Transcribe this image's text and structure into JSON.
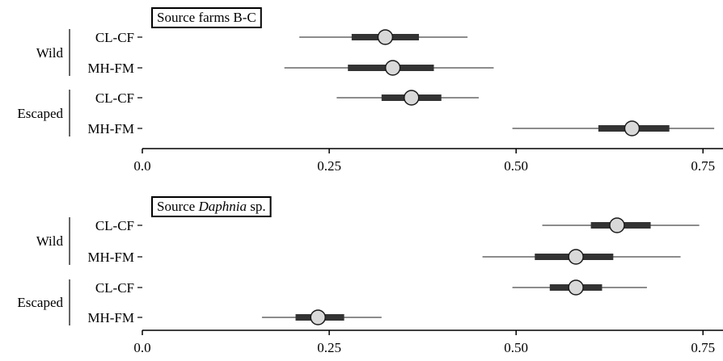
{
  "chart_data": [
    {
      "type": "scatter",
      "panel_title": {
        "prefix": "Source ",
        "italic": "",
        "suffix": "farms B-C"
      },
      "xlim": [
        0.0,
        0.78
      ],
      "x_ticks": [
        0.0,
        0.25,
        0.5,
        0.75
      ],
      "x_tick_labels": [
        "0.0",
        "0.25",
        "0.50",
        "0.75"
      ],
      "groups": [
        {
          "label": "Wild",
          "rows": [
            {
              "label": "CL-CF",
              "median": 0.325,
              "inner": [
                0.28,
                0.37
              ],
              "outer": [
                0.21,
                0.435
              ]
            },
            {
              "label": "MH-FM",
              "median": 0.335,
              "inner": [
                0.275,
                0.39
              ],
              "outer": [
                0.19,
                0.47
              ]
            }
          ]
        },
        {
          "label": "Escaped",
          "rows": [
            {
              "label": "CL-CF",
              "median": 0.36,
              "inner": [
                0.32,
                0.4
              ],
              "outer": [
                0.26,
                0.45
              ]
            },
            {
              "label": "MH-FM",
              "median": 0.655,
              "inner": [
                0.61,
                0.705
              ],
              "outer": [
                0.495,
                0.765
              ]
            }
          ]
        }
      ]
    },
    {
      "type": "scatter",
      "panel_title": {
        "prefix": "Source ",
        "italic": "Daphnia",
        "suffix": " sp."
      },
      "xlim": [
        0.0,
        0.78
      ],
      "x_ticks": [
        0.0,
        0.25,
        0.5,
        0.75
      ],
      "x_tick_labels": [
        "0.0",
        "0.25",
        "0.50",
        "0.75"
      ],
      "groups": [
        {
          "label": "Wild",
          "rows": [
            {
              "label": "CL-CF",
              "median": 0.635,
              "inner": [
                0.6,
                0.68
              ],
              "outer": [
                0.535,
                0.745
              ]
            },
            {
              "label": "MH-FM",
              "median": 0.58,
              "inner": [
                0.525,
                0.63
              ],
              "outer": [
                0.455,
                0.72
              ]
            }
          ]
        },
        {
          "label": "Escaped",
          "rows": [
            {
              "label": "CL-CF",
              "median": 0.58,
              "inner": [
                0.545,
                0.615
              ],
              "outer": [
                0.495,
                0.675
              ]
            },
            {
              "label": "MH-FM",
              "median": 0.235,
              "inner": [
                0.205,
                0.27
              ],
              "outer": [
                0.16,
                0.32
              ]
            }
          ]
        }
      ]
    }
  ],
  "colors": {
    "outer_line": "#8c8c8c",
    "inner_line": "#333333",
    "point_fill": "#d9d9d9",
    "point_stroke": "#1a1a1a",
    "axis": "#000000"
  }
}
